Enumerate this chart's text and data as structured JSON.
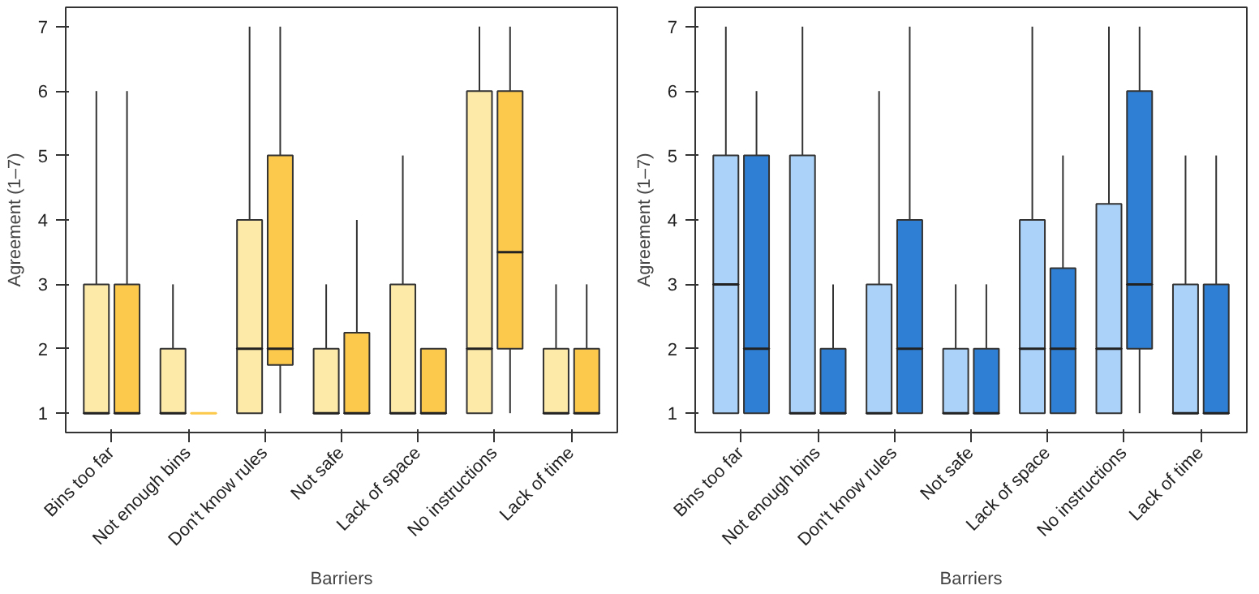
{
  "chart_data": [
    {
      "type": "box",
      "xlabel": "Barriers",
      "ylabel": "Agreement (1–7)",
      "categories": [
        "Bins too far",
        "Not enough bins",
        "Don't know rules",
        "Not safe",
        "Lack of space",
        "No instructions",
        "Lack of time"
      ],
      "ylim": [
        0.7,
        7.3
      ],
      "yticks": [
        1,
        2,
        3,
        4,
        5,
        6,
        7
      ],
      "series": [
        {
          "color": "#fde9a8",
          "boxes": [
            {
              "low": 1,
              "q1": 1,
              "median": 1,
              "q3": 3,
              "high": 6
            },
            {
              "low": 1,
              "q1": 1,
              "median": 1,
              "q3": 2,
              "high": 3
            },
            {
              "low": 1,
              "q1": 1,
              "median": 2,
              "q3": 4,
              "high": 7
            },
            {
              "low": 1,
              "q1": 1,
              "median": 1,
              "q3": 2,
              "high": 3
            },
            {
              "low": 1,
              "q1": 1,
              "median": 1,
              "q3": 3,
              "high": 5
            },
            {
              "low": 1,
              "q1": 1,
              "median": 2,
              "q3": 6,
              "high": 7
            },
            {
              "low": 1,
              "q1": 1,
              "median": 1,
              "q3": 2,
              "high": 3
            }
          ]
        },
        {
          "color": "#fdc94c",
          "boxes": [
            {
              "low": 1,
              "q1": 1,
              "median": 1,
              "q3": 3,
              "high": 6
            },
            {
              "low": 1,
              "q1": 1,
              "median": 1,
              "q3": 1,
              "high": 1
            },
            {
              "low": 1,
              "q1": 1.75,
              "median": 2,
              "q3": 5,
              "high": 7
            },
            {
              "low": 1,
              "q1": 1,
              "median": 1,
              "q3": 2.25,
              "high": 4
            },
            {
              "low": 1,
              "q1": 1,
              "median": 1,
              "q3": 2,
              "high": 2
            },
            {
              "low": 1,
              "q1": 2,
              "median": 3.5,
              "q3": 6,
              "high": 7
            },
            {
              "low": 1,
              "q1": 1,
              "median": 1,
              "q3": 2,
              "high": 3
            }
          ]
        }
      ]
    },
    {
      "type": "box",
      "xlabel": "Barriers",
      "ylabel": "Agreement (1–7)",
      "categories": [
        "Bins too far",
        "Not enough bins",
        "Don't know rules",
        "Not safe",
        "Lack of space",
        "No instructions",
        "Lack of time"
      ],
      "ylim": [
        0.7,
        7.3
      ],
      "yticks": [
        1,
        2,
        3,
        4,
        5,
        6,
        7
      ],
      "series": [
        {
          "color": "#abd3fa",
          "boxes": [
            {
              "low": 1,
              "q1": 1,
              "median": 3,
              "q3": 5,
              "high": 7
            },
            {
              "low": 1,
              "q1": 1,
              "median": 1,
              "q3": 5,
              "high": 7
            },
            {
              "low": 1,
              "q1": 1,
              "median": 1,
              "q3": 3,
              "high": 6
            },
            {
              "low": 1,
              "q1": 1,
              "median": 1,
              "q3": 2,
              "high": 3
            },
            {
              "low": 1,
              "q1": 1,
              "median": 2,
              "q3": 4,
              "high": 7
            },
            {
              "low": 1,
              "q1": 1,
              "median": 2,
              "q3": 4.25,
              "high": 7
            },
            {
              "low": 1,
              "q1": 1,
              "median": 1,
              "q3": 3,
              "high": 5
            }
          ]
        },
        {
          "color": "#2f80d4",
          "boxes": [
            {
              "low": 1,
              "q1": 1,
              "median": 2,
              "q3": 5,
              "high": 6
            },
            {
              "low": 1,
              "q1": 1,
              "median": 1,
              "q3": 2,
              "high": 3
            },
            {
              "low": 1,
              "q1": 1,
              "median": 2,
              "q3": 4,
              "high": 7
            },
            {
              "low": 1,
              "q1": 1,
              "median": 1,
              "q3": 2,
              "high": 3
            },
            {
              "low": 1,
              "q1": 1,
              "median": 2,
              "q3": 3.25,
              "high": 5
            },
            {
              "low": 1,
              "q1": 2,
              "median": 3,
              "q3": 6,
              "high": 7
            },
            {
              "low": 1,
              "q1": 1,
              "median": 1,
              "q3": 3,
              "high": 5
            }
          ]
        }
      ]
    }
  ]
}
